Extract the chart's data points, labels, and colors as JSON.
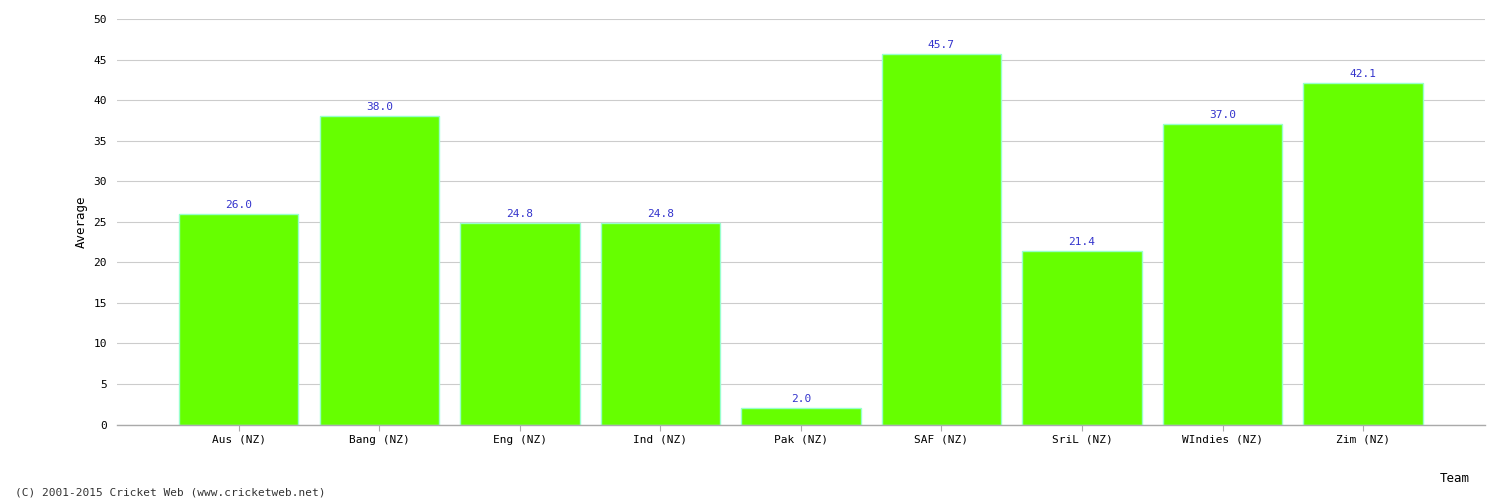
{
  "categories": [
    "Aus (NZ)",
    "Bang (NZ)",
    "Eng (NZ)",
    "Ind (NZ)",
    "Pak (NZ)",
    "SAF (NZ)",
    "SriL (NZ)",
    "WIndies (NZ)",
    "Zim (NZ)"
  ],
  "values": [
    26.0,
    38.0,
    24.8,
    24.8,
    2.0,
    45.7,
    21.4,
    37.0,
    42.1
  ],
  "bar_color": "#66ff00",
  "bar_edge_color": "#99ffcc",
  "label_color": "#3333cc",
  "xlabel": "Team",
  "ylabel": "Average",
  "ylim": [
    0,
    50
  ],
  "yticks": [
    0,
    5,
    10,
    15,
    20,
    25,
    30,
    35,
    40,
    45,
    50
  ],
  "grid_color": "#cccccc",
  "background_color": "#ffffff",
  "footer_text": "(C) 2001-2015 Cricket Web (www.cricketweb.net)",
  "label_fontsize": 8,
  "axis_label_fontsize": 9,
  "tick_fontsize": 8,
  "footer_fontsize": 8
}
